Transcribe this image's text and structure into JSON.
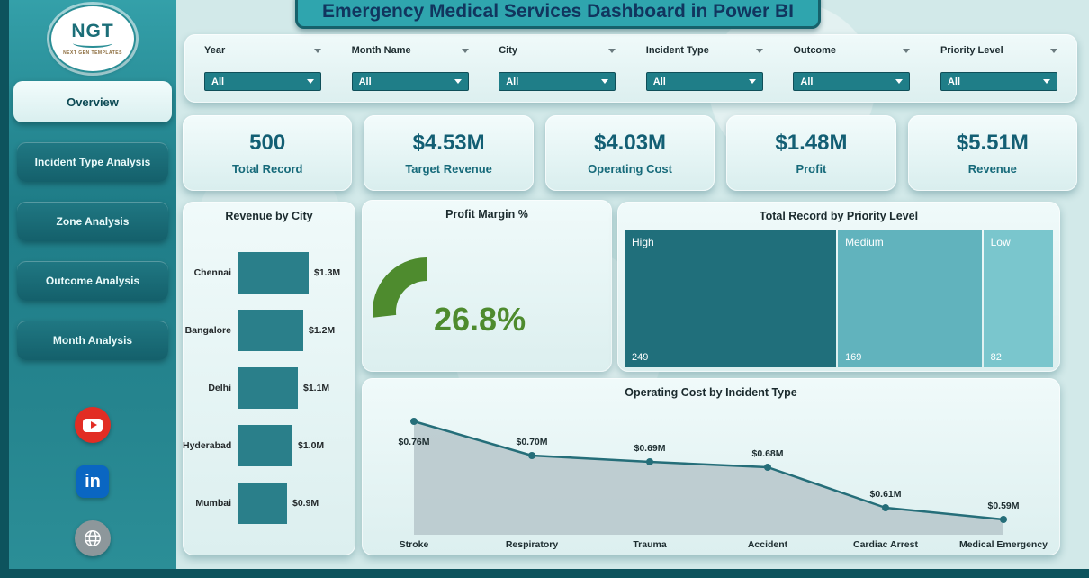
{
  "title": "Emergency Medical Services Dashboard in Power BI",
  "sidebar": {
    "logo_text": "NGT",
    "logo_sub": "NEXT GEN TEMPLATES",
    "items": [
      {
        "label": "Overview",
        "active": true
      },
      {
        "label": "Incident Type Analysis",
        "active": false
      },
      {
        "label": "Zone Analysis",
        "active": false
      },
      {
        "label": "Outcome Analysis",
        "active": false
      },
      {
        "label": "Month Analysis",
        "active": false
      }
    ],
    "social": [
      {
        "name": "youtube-icon"
      },
      {
        "name": "linkedin-icon",
        "label": "in"
      },
      {
        "name": "globe-icon"
      }
    ]
  },
  "filters": [
    {
      "label": "Year",
      "value": "All"
    },
    {
      "label": "Month Name",
      "value": "All"
    },
    {
      "label": "City",
      "value": "All"
    },
    {
      "label": "Incident Type",
      "value": "All"
    },
    {
      "label": "Outcome",
      "value": "All"
    },
    {
      "label": "Priority Level",
      "value": "All"
    }
  ],
  "kpis": [
    {
      "value": "500",
      "label": "Total Record"
    },
    {
      "value": "$4.53M",
      "label": "Target Revenue"
    },
    {
      "value": "$4.03M",
      "label": "Operating Cost"
    },
    {
      "value": "$1.48M",
      "label": "Profit"
    },
    {
      "value": "$5.51M",
      "label": "Revenue"
    }
  ],
  "chart_data": [
    {
      "type": "bar",
      "title": "Revenue by City",
      "orientation": "horizontal",
      "categories": [
        "Chennai",
        "Bangalore",
        "Delhi",
        "Hyderabad",
        "Mumbai"
      ],
      "values": [
        1.3,
        1.2,
        1.1,
        1.0,
        0.9
      ],
      "labels": [
        "$1.3M",
        "$1.2M",
        "$1.1M",
        "$1.0M",
        "$0.9M"
      ],
      "xlabel": "",
      "ylabel": "",
      "unit": "M USD"
    },
    {
      "type": "gauge",
      "title": "Profit Margin %",
      "value": 26.8,
      "label": "26.8%"
    },
    {
      "type": "treemap",
      "title": "Total Record by Priority Level",
      "categories": [
        "High",
        "Medium",
        "Low"
      ],
      "values": [
        249,
        169,
        82
      ]
    },
    {
      "type": "area",
      "title": "Operating Cost by Incident Type",
      "categories": [
        "Stroke",
        "Respiratory",
        "Trauma",
        "Accident",
        "Cardiac Arrest",
        "Medical Emergency"
      ],
      "values": [
        0.76,
        0.7,
        0.69,
        0.68,
        0.61,
        0.59
      ],
      "labels": [
        "$0.76M",
        "$0.70M",
        "$0.69M",
        "$0.68M",
        "$0.61M",
        "$0.59M"
      ]
    }
  ],
  "colors": {
    "teal": "#2a7f8a",
    "teal_dark": "#14606b",
    "green": "#4e8b2e",
    "treemap": [
      "#206f7b",
      "#61b3bd",
      "#7ac6cd"
    ],
    "area_fill": "#b9c9cd",
    "area_line": "#256e79",
    "label_dark": "#1d2d30"
  }
}
